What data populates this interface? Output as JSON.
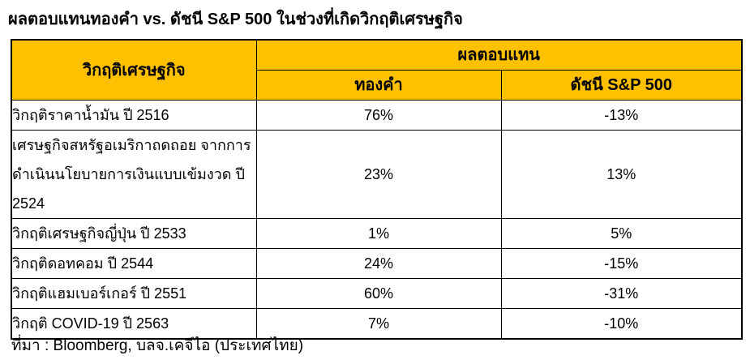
{
  "page": {
    "title": "ผลตอบแทนทองคำ vs. ดัชนี S&P 500 ในช่วงที่เกิดวิกฤติเศรษฐกิจ",
    "source": "ที่มา : Bloomberg, บลจ.เคจีไอ (ประเทศไทย)"
  },
  "colors": {
    "header_background": "#FFC000",
    "border": "#000000",
    "text": "#000000",
    "page_background": "#FFFFFF"
  },
  "table": {
    "header": {
      "crisis": "วิกฤติเศรษฐกิจ",
      "returns_group": "ผลตอบแทน",
      "gold": "ทองคำ",
      "sp500": "ดัชนี S&P 500"
    },
    "rows": [
      {
        "crisis": "วิกฤติราคาน้ำมัน ปี 2516",
        "gold": "76%",
        "sp500": "-13%"
      },
      {
        "crisis": "เศรษฐกิจสหรัฐอเมริกาถดถอย จากการดำเนินนโยบายการเงินแบบเข้มงวด ปี 2524",
        "gold": "23%",
        "sp500": "13%"
      },
      {
        "crisis": "วิกฤติเศรษฐกิจญี่ปุ่น ปี 2533",
        "gold": "1%",
        "sp500": "5%"
      },
      {
        "crisis": "วิกฤติดอทคอม ปี 2544",
        "gold": "24%",
        "sp500": "-15%"
      },
      {
        "crisis": "วิกฤติแฮมเบอร์เกอร์ ปี 2551",
        "gold": "60%",
        "sp500": "-31%"
      },
      {
        "crisis": "วิกฤติ COVID-19 ปี 2563",
        "gold": "7%",
        "sp500": "-10%"
      }
    ]
  },
  "chart_data": {
    "type": "table",
    "title": "ผลตอบแทนทองคำ vs. ดัชนี S&P 500 ในช่วงที่เกิดวิกฤติเศรษฐกิจ",
    "columns": [
      "วิกฤติเศรษฐกิจ",
      "ผลตอบแทน ทองคำ",
      "ผลตอบแทน ดัชนี S&P 500"
    ],
    "rows": [
      [
        "วิกฤติราคาน้ำมัน ปี 2516",
        "76%",
        "-13%"
      ],
      [
        "เศรษฐกิจสหรัฐอเมริกาถดถอย จากการดำเนินนโยบายการเงินแบบเข้มงวด ปี 2524",
        "23%",
        "13%"
      ],
      [
        "วิกฤติเศรษฐกิจญี่ปุ่น ปี 2533",
        "1%",
        "5%"
      ],
      [
        "วิกฤติดอทคอม ปี 2544",
        "24%",
        "-15%"
      ],
      [
        "วิกฤติแฮมเบอร์เกอร์ ปี 2551",
        "60%",
        "-31%"
      ],
      [
        "วิกฤติ COVID-19 ปี 2563",
        "7%",
        "-10%"
      ]
    ],
    "gold_returns_pct": [
      76,
      23,
      1,
      24,
      60,
      7
    ],
    "sp500_returns_pct": [
      -13,
      13,
      5,
      -15,
      -31,
      -10
    ],
    "source": "ที่มา : Bloomberg, บลจ.เคจีไอ (ประเทศไทย)"
  }
}
